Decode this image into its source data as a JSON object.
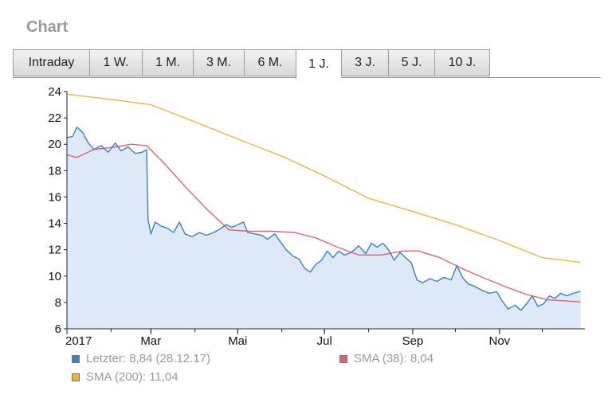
{
  "section_title": "Chart",
  "tabs": [
    {
      "label": "Intraday",
      "active": false
    },
    {
      "label": "1 W.",
      "active": false
    },
    {
      "label": "1 M.",
      "active": false
    },
    {
      "label": "3 M.",
      "active": false
    },
    {
      "label": "6 M.",
      "active": false
    },
    {
      "label": "1 J.",
      "active": true
    },
    {
      "label": "3 J.",
      "active": false
    },
    {
      "label": "5 J.",
      "active": false
    },
    {
      "label": "10 J.",
      "active": false
    }
  ],
  "colors": {
    "price_line": "#3a7fc8",
    "price_fill": "#dde9f6",
    "sma38": "#e0646b",
    "sma200": "#f0b13f",
    "axis": "#222222"
  },
  "chart_data": {
    "type": "line",
    "title": "",
    "xlabel": "",
    "ylabel": "",
    "ylim": [
      6,
      24
    ],
    "xlim": [
      "2017-01-01",
      "2017-12-31"
    ],
    "yticks": [
      6,
      8,
      10,
      12,
      14,
      16,
      18,
      20,
      22,
      24
    ],
    "xticks": [
      {
        "label": "2017",
        "date": "2017-01-01"
      },
      {
        "label": "Mar",
        "date": "2017-03-01"
      },
      {
        "label": "Mai",
        "date": "2017-05-01"
      },
      {
        "label": "Jul",
        "date": "2017-07-01"
      },
      {
        "label": "Sep",
        "date": "2017-09-01"
      },
      {
        "label": "Nov",
        "date": "2017-11-01"
      }
    ],
    "grid": false,
    "legend_position": "bottom",
    "series": [
      {
        "name": "Letzter",
        "legend": "Letzter: 8,84 (28.12.17)",
        "style": "area",
        "points": [
          [
            "2017-01-01",
            20.5
          ],
          [
            "2017-01-05",
            20.6
          ],
          [
            "2017-01-08",
            21.3
          ],
          [
            "2017-01-12",
            20.9
          ],
          [
            "2017-01-16",
            20.1
          ],
          [
            "2017-01-20",
            19.6
          ],
          [
            "2017-01-25",
            19.9
          ],
          [
            "2017-01-30",
            19.4
          ],
          [
            "2017-02-04",
            20.1
          ],
          [
            "2017-02-08",
            19.5
          ],
          [
            "2017-02-13",
            19.8
          ],
          [
            "2017-02-18",
            19.3
          ],
          [
            "2017-02-23",
            19.4
          ],
          [
            "2017-02-26",
            19.6
          ],
          [
            "2017-02-27",
            14.3
          ],
          [
            "2017-03-01",
            13.2
          ],
          [
            "2017-03-04",
            14.1
          ],
          [
            "2017-03-08",
            13.8
          ],
          [
            "2017-03-13",
            13.6
          ],
          [
            "2017-03-17",
            13.3
          ],
          [
            "2017-03-21",
            14.1
          ],
          [
            "2017-03-25",
            13.2
          ],
          [
            "2017-03-30",
            13.0
          ],
          [
            "2017-04-04",
            13.3
          ],
          [
            "2017-04-09",
            13.1
          ],
          [
            "2017-04-14",
            13.3
          ],
          [
            "2017-04-19",
            13.6
          ],
          [
            "2017-04-23",
            13.9
          ],
          [
            "2017-04-27",
            13.7
          ],
          [
            "2017-05-01",
            13.9
          ],
          [
            "2017-05-05",
            14.1
          ],
          [
            "2017-05-08",
            13.3
          ],
          [
            "2017-05-13",
            13.2
          ],
          [
            "2017-05-18",
            13.1
          ],
          [
            "2017-05-22",
            12.8
          ],
          [
            "2017-05-27",
            13.2
          ],
          [
            "2017-05-31",
            12.6
          ],
          [
            "2017-06-04",
            12.0
          ],
          [
            "2017-06-09",
            11.5
          ],
          [
            "2017-06-13",
            11.3
          ],
          [
            "2017-06-17",
            10.6
          ],
          [
            "2017-06-21",
            10.3
          ],
          [
            "2017-06-25",
            10.9
          ],
          [
            "2017-06-29",
            11.2
          ],
          [
            "2017-07-03",
            11.9
          ],
          [
            "2017-07-07",
            11.4
          ],
          [
            "2017-07-11",
            11.9
          ],
          [
            "2017-07-15",
            11.6
          ],
          [
            "2017-07-20",
            11.8
          ],
          [
            "2017-07-25",
            12.3
          ],
          [
            "2017-07-30",
            11.7
          ],
          [
            "2017-08-03",
            12.5
          ],
          [
            "2017-08-07",
            12.2
          ],
          [
            "2017-08-11",
            12.5
          ],
          [
            "2017-08-15",
            12.0
          ],
          [
            "2017-08-19",
            11.2
          ],
          [
            "2017-08-23",
            11.8
          ],
          [
            "2017-08-27",
            11.4
          ],
          [
            "2017-08-31",
            11.0
          ],
          [
            "2017-09-04",
            9.7
          ],
          [
            "2017-09-08",
            9.5
          ],
          [
            "2017-09-13",
            9.8
          ],
          [
            "2017-09-18",
            9.6
          ],
          [
            "2017-09-23",
            9.9
          ],
          [
            "2017-09-28",
            9.7
          ],
          [
            "2017-10-02",
            10.8
          ],
          [
            "2017-10-06",
            9.9
          ],
          [
            "2017-10-10",
            9.4
          ],
          [
            "2017-10-15",
            9.2
          ],
          [
            "2017-10-20",
            8.9
          ],
          [
            "2017-10-25",
            8.7
          ],
          [
            "2017-10-30",
            8.8
          ],
          [
            "2017-11-03",
            8.1
          ],
          [
            "2017-11-07",
            7.5
          ],
          [
            "2017-11-12",
            7.8
          ],
          [
            "2017-11-16",
            7.4
          ],
          [
            "2017-11-20",
            7.9
          ],
          [
            "2017-11-24",
            8.5
          ],
          [
            "2017-11-28",
            7.7
          ],
          [
            "2017-12-02",
            7.9
          ],
          [
            "2017-12-06",
            8.5
          ],
          [
            "2017-12-10",
            8.3
          ],
          [
            "2017-12-14",
            8.7
          ],
          [
            "2017-12-18",
            8.5
          ],
          [
            "2017-12-23",
            8.7
          ],
          [
            "2017-12-28",
            8.84
          ]
        ]
      },
      {
        "name": "SMA (38)",
        "legend": "SMA (38): 8,04",
        "style": "line",
        "points": [
          [
            "2017-01-01",
            19.2
          ],
          [
            "2017-01-08",
            19.0
          ],
          [
            "2017-01-20",
            19.6
          ],
          [
            "2017-02-05",
            19.8
          ],
          [
            "2017-02-15",
            20.0
          ],
          [
            "2017-02-26",
            19.9
          ],
          [
            "2017-03-10",
            18.6
          ],
          [
            "2017-03-25",
            16.8
          ],
          [
            "2017-04-10",
            15.0
          ],
          [
            "2017-04-25",
            13.5
          ],
          [
            "2017-05-10",
            13.4
          ],
          [
            "2017-05-25",
            13.4
          ],
          [
            "2017-06-10",
            13.3
          ],
          [
            "2017-06-25",
            12.9
          ],
          [
            "2017-07-10",
            12.2
          ],
          [
            "2017-07-25",
            11.6
          ],
          [
            "2017-08-10",
            11.6
          ],
          [
            "2017-08-25",
            11.9
          ],
          [
            "2017-09-05",
            11.9
          ],
          [
            "2017-09-20",
            11.4
          ],
          [
            "2017-10-05",
            10.6
          ],
          [
            "2017-10-20",
            9.9
          ],
          [
            "2017-11-05",
            9.2
          ],
          [
            "2017-11-20",
            8.6
          ],
          [
            "2017-12-05",
            8.2
          ],
          [
            "2017-12-28",
            8.04
          ]
        ]
      },
      {
        "name": "SMA (200)",
        "legend": "SMA (200): 11,04",
        "style": "line",
        "points": [
          [
            "2017-01-01",
            23.8
          ],
          [
            "2017-02-01",
            23.4
          ],
          [
            "2017-03-01",
            23.0
          ],
          [
            "2017-04-01",
            21.7
          ],
          [
            "2017-05-01",
            20.4
          ],
          [
            "2017-06-01",
            19.1
          ],
          [
            "2017-07-01",
            17.6
          ],
          [
            "2017-08-01",
            15.9
          ],
          [
            "2017-09-01",
            14.9
          ],
          [
            "2017-10-01",
            13.9
          ],
          [
            "2017-11-01",
            12.7
          ],
          [
            "2017-12-01",
            11.4
          ],
          [
            "2017-12-28",
            11.04
          ]
        ]
      }
    ]
  }
}
